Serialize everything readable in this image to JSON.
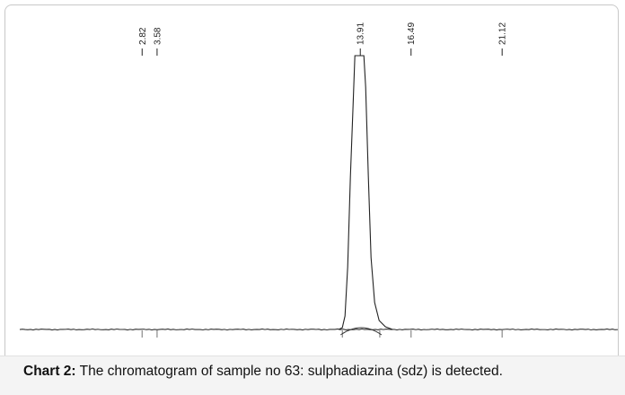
{
  "chart_data": {
    "type": "line",
    "title": "",
    "xlabel": "",
    "ylabel": "",
    "xlim": [
      -3.4,
      27.0
    ],
    "ylim": [
      0,
      100
    ],
    "peak_labels": [
      "2.82",
      "3.58",
      "13.91",
      "16.49",
      "21.12"
    ],
    "peaks": [
      {
        "label": "2.82",
        "retention_time": 2.82,
        "height": 0.4
      },
      {
        "label": "3.58",
        "retention_time": 3.58,
        "height": 0.6
      },
      {
        "label": "13.91",
        "retention_time": 13.91,
        "height": 100
      },
      {
        "label": "16.49",
        "retention_time": 16.49,
        "height": 0.2
      },
      {
        "label": "21.12",
        "retention_time": 21.12,
        "height": 0.2
      }
    ],
    "baseline_marks": [
      2.82,
      3.58,
      13.0,
      14.9,
      16.49,
      21.12
    ],
    "integration_window": [
      13.0,
      14.9
    ],
    "grid": false,
    "legend": "none"
  },
  "caption": {
    "label": "Chart 2:",
    "text": " The chromatogram of sample no 63: sulphadiazina (sdz) is detected."
  }
}
